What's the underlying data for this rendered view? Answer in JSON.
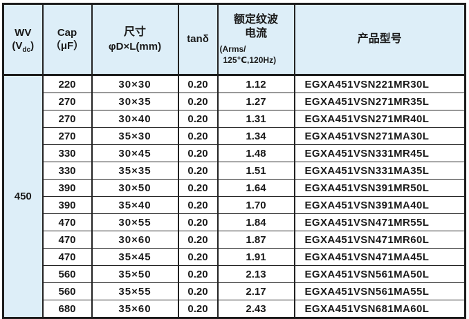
{
  "colors": {
    "header_bg": "#ddeef8",
    "border": "#1c1c1c",
    "text": "#1a1a1a"
  },
  "table": {
    "header": {
      "wv_label": "WV",
      "wv_unit_open": "(V",
      "wv_unit_sub": "dc",
      "wv_unit_close": ")",
      "cap_label": "Cap",
      "cap_unit": "（μF）",
      "size_label": "尺寸",
      "size_unit": "φD×L(mm)",
      "tand_label": "tanδ",
      "ripple_line1": "额定纹波",
      "ripple_line2": "电流",
      "ripple_unit_line1": "(Arms/",
      "ripple_unit_line2": "125℃,120Hz)",
      "model_label": "产品型号"
    },
    "wv_value": "450",
    "rows": [
      {
        "cap": "220",
        "size": "30×30",
        "tand": "0.20",
        "ripple": "1.12",
        "model": "EGXA451VSN221MR30L"
      },
      {
        "cap": "270",
        "size": "30×35",
        "tand": "0.20",
        "ripple": "1.27",
        "model": "EGXA451VSN271MR35L"
      },
      {
        "cap": "270",
        "size": "30×40",
        "tand": "0.20",
        "ripple": "1.31",
        "model": "EGXA451VSN271MR40L"
      },
      {
        "cap": "270",
        "size": "35×30",
        "tand": "0.20",
        "ripple": "1.34",
        "model": "EGXA451VSN271MA30L"
      },
      {
        "cap": "330",
        "size": "30×45",
        "tand": "0.20",
        "ripple": "1.48",
        "model": "EGXA451VSN331MR45L"
      },
      {
        "cap": "330",
        "size": "35×35",
        "tand": "0.20",
        "ripple": "1.51",
        "model": "EGXA451VSN331MA35L"
      },
      {
        "cap": "390",
        "size": "30×50",
        "tand": "0.20",
        "ripple": "1.64",
        "model": "EGXA451VSN391MR50L"
      },
      {
        "cap": "390",
        "size": "35×40",
        "tand": "0.20",
        "ripple": "1.70",
        "model": "EGXA451VSN391MA40L"
      },
      {
        "cap": "470",
        "size": "30×55",
        "tand": "0.20",
        "ripple": "1.84",
        "model": "EGXA451VSN471MR55L"
      },
      {
        "cap": "470",
        "size": "30×60",
        "tand": "0.20",
        "ripple": "1.87",
        "model": "EGXA451VSN471MR60L"
      },
      {
        "cap": "470",
        "size": "35×45",
        "tand": "0.20",
        "ripple": "1.91",
        "model": "EGXA451VSN471MA45L"
      },
      {
        "cap": "560",
        "size": "35×50",
        "tand": "0.20",
        "ripple": "2.13",
        "model": "EGXA451VSN561MA50L"
      },
      {
        "cap": "560",
        "size": "35×55",
        "tand": "0.20",
        "ripple": "2.17",
        "model": "EGXA451VSN561MA55L"
      },
      {
        "cap": "680",
        "size": "35×60",
        "tand": "0.20",
        "ripple": "2.43",
        "model": "EGXA451VSN681MA60L"
      }
    ]
  }
}
